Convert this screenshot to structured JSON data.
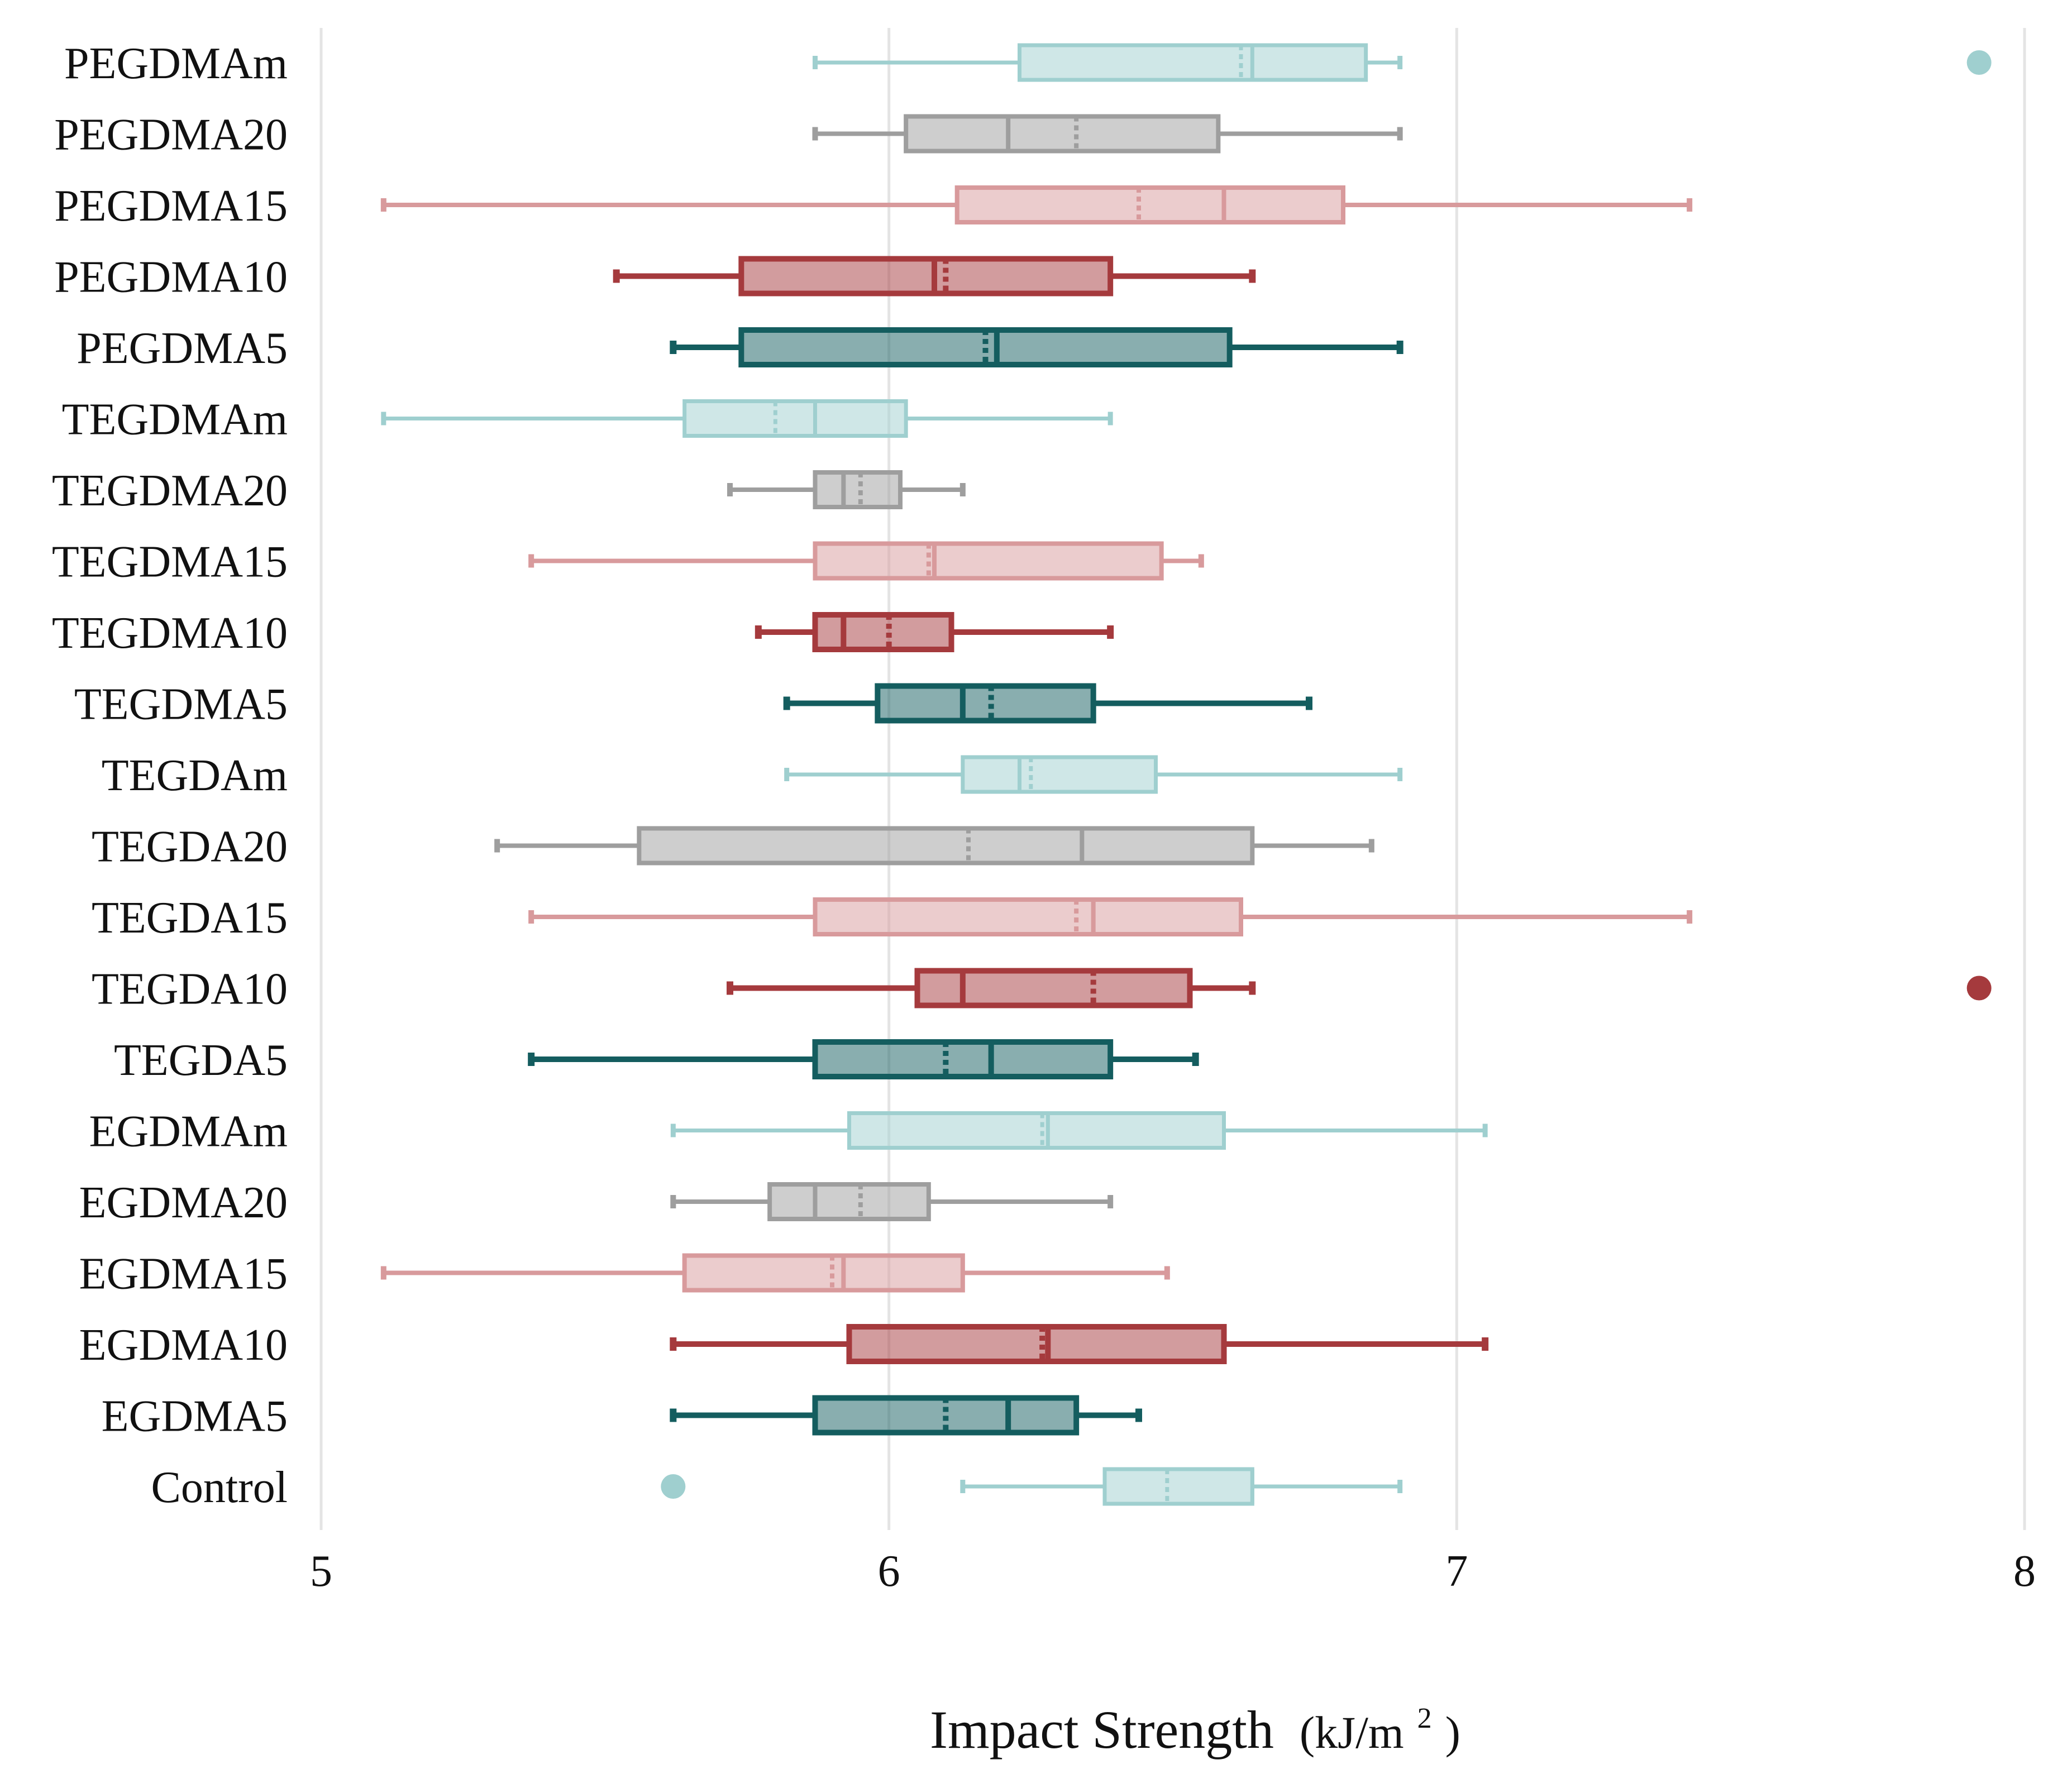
{
  "chart_data": {
    "type": "box",
    "orientation": "horizontal",
    "title": "",
    "xlabel": "Impact Strength",
    "xlabel_unit": "(kJ/m",
    "xlabel_unit_sup": "2",
    "xlabel_unit_close": ")",
    "ylabel": "",
    "xlim": [
      5,
      8
    ],
    "xticks": [
      "5",
      "6",
      "7",
      "8"
    ],
    "grid": "vertical",
    "colors": {
      "light_teal": "#9fcfcf",
      "gray": "#9e9e9e",
      "light_red": "#d89a9c",
      "dark_red": "#a53a3d",
      "dark_teal": "#145d5f"
    },
    "categories": [
      "PEGDMAm",
      "PEGDMA20",
      "PEGDMA15",
      "PEGDMA10",
      "PEGDMA5",
      "TEGDMAm",
      "TEGDMA20",
      "TEGDMA15",
      "TEGDMA10",
      "TEGDMA5",
      "TEGDAm",
      "TEGDA20",
      "TEGDA15",
      "TEGDA10",
      "TEGDA5",
      "EGDMAm",
      "EGDMA20",
      "EGDMA15",
      "EGDMA10",
      "EGDMA5",
      "Control"
    ],
    "boxes": [
      {
        "label": "PEGDMAm",
        "color": "light_teal",
        "min": 5.87,
        "q1": 6.23,
        "median": 6.64,
        "mean": 6.62,
        "q3": 6.84,
        "max": 6.9,
        "outliers": [
          7.92
        ]
      },
      {
        "label": "PEGDMA20",
        "color": "gray",
        "min": 5.87,
        "q1": 6.03,
        "median": 6.21,
        "mean": 6.33,
        "q3": 6.58,
        "max": 6.9,
        "outliers": []
      },
      {
        "label": "PEGDMA15",
        "color": "light_red",
        "min": 5.11,
        "q1": 6.12,
        "median": 6.59,
        "mean": 6.44,
        "q3": 6.8,
        "max": 7.41,
        "outliers": []
      },
      {
        "label": "PEGDMA10",
        "color": "dark_red",
        "min": 5.52,
        "q1": 5.74,
        "median": 6.08,
        "mean": 6.1,
        "q3": 6.39,
        "max": 6.64,
        "outliers": []
      },
      {
        "label": "PEGDMA5",
        "color": "dark_teal",
        "min": 5.62,
        "q1": 5.74,
        "median": 6.19,
        "mean": 6.17,
        "q3": 6.6,
        "max": 6.9,
        "outliers": []
      },
      {
        "label": "TEGDMAm",
        "color": "light_teal",
        "min": 5.11,
        "q1": 5.64,
        "median": 5.87,
        "mean": 5.8,
        "q3": 6.03,
        "max": 6.39,
        "outliers": []
      },
      {
        "label": "TEGDMA20",
        "color": "gray",
        "min": 5.72,
        "q1": 5.87,
        "median": 5.92,
        "mean": 5.95,
        "q3": 6.02,
        "max": 6.13,
        "outliers": []
      },
      {
        "label": "TEGDMA15",
        "color": "light_red",
        "min": 5.37,
        "q1": 5.87,
        "median": 6.08,
        "mean": 6.07,
        "q3": 6.48,
        "max": 6.55,
        "outliers": []
      },
      {
        "label": "TEGDMA10",
        "color": "dark_red",
        "min": 5.77,
        "q1": 5.87,
        "median": 5.92,
        "mean": 6.0,
        "q3": 6.11,
        "max": 6.39,
        "outliers": []
      },
      {
        "label": "TEGDMA5",
        "color": "dark_teal",
        "min": 5.82,
        "q1": 5.98,
        "median": 6.13,
        "mean": 6.18,
        "q3": 6.36,
        "max": 6.74,
        "outliers": []
      },
      {
        "label": "TEGDAm",
        "color": "light_teal",
        "min": 5.82,
        "q1": 6.13,
        "median": 6.23,
        "mean": 6.25,
        "q3": 6.47,
        "max": 6.9,
        "outliers": []
      },
      {
        "label": "TEGDA20",
        "color": "gray",
        "min": 5.31,
        "q1": 5.56,
        "median": 6.34,
        "mean": 6.14,
        "q3": 6.64,
        "max": 6.85,
        "outliers": []
      },
      {
        "label": "TEGDA15",
        "color": "light_red",
        "min": 5.37,
        "q1": 5.87,
        "median": 6.36,
        "mean": 6.33,
        "q3": 6.62,
        "max": 7.41,
        "outliers": []
      },
      {
        "label": "TEGDA10",
        "color": "dark_red",
        "min": 5.72,
        "q1": 6.05,
        "median": 6.13,
        "mean": 6.36,
        "q3": 6.53,
        "max": 6.64,
        "outliers": [
          7.92
        ]
      },
      {
        "label": "TEGDA5",
        "color": "dark_teal",
        "min": 5.37,
        "q1": 5.87,
        "median": 6.18,
        "mean": 6.1,
        "q3": 6.39,
        "max": 6.54,
        "outliers": []
      },
      {
        "label": "EGDMAm",
        "color": "light_teal",
        "min": 5.62,
        "q1": 5.93,
        "median": 6.28,
        "mean": 6.27,
        "q3": 6.59,
        "max": 7.05,
        "outliers": []
      },
      {
        "label": "EGDMA20",
        "color": "gray",
        "min": 5.62,
        "q1": 5.79,
        "median": 5.87,
        "mean": 5.95,
        "q3": 6.07,
        "max": 6.39,
        "outliers": []
      },
      {
        "label": "EGDMA15",
        "color": "light_red",
        "min": 5.11,
        "q1": 5.64,
        "median": 5.92,
        "mean": 5.9,
        "q3": 6.13,
        "max": 6.49,
        "outliers": []
      },
      {
        "label": "EGDMA10",
        "color": "dark_red",
        "min": 5.62,
        "q1": 5.93,
        "median": 6.28,
        "mean": 6.27,
        "q3": 6.59,
        "max": 7.05,
        "outliers": []
      },
      {
        "label": "EGDMA5",
        "color": "dark_teal",
        "min": 5.62,
        "q1": 5.87,
        "median": 6.21,
        "mean": 6.1,
        "q3": 6.33,
        "max": 6.44,
        "outliers": []
      },
      {
        "label": "Control",
        "color": "light_teal",
        "min": 6.13,
        "q1": 6.38,
        "median": 6.64,
        "mean": 6.49,
        "q3": 6.64,
        "max": 6.9,
        "outliers": [
          5.62
        ]
      }
    ]
  }
}
